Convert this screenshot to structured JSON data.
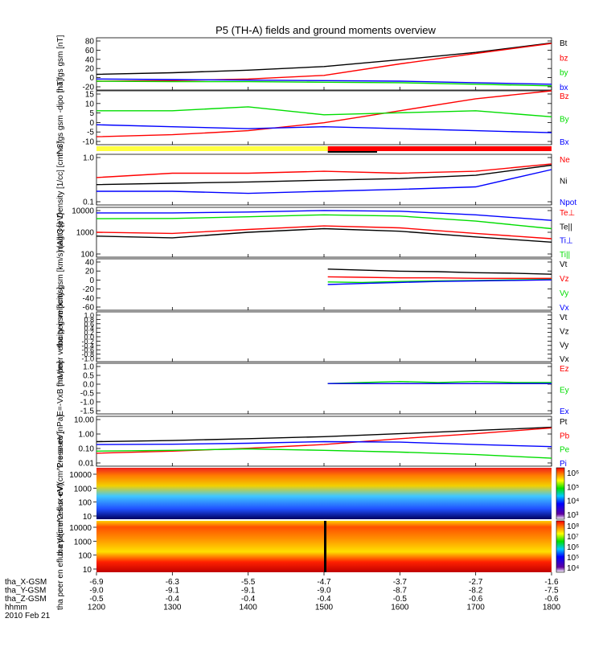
{
  "title": "P5 (TH-A) fields and ground moments overview",
  "date_label": "2010 Feb 21",
  "x_axis": {
    "ticks": [
      "1200",
      "1300",
      "1400",
      "1500",
      "1600",
      "1700",
      "1800"
    ],
    "rows": [
      {
        "label": "tha_X-GSM",
        "values": [
          "-6.9",
          "-6.3",
          "-5.5",
          "-4.7",
          "-3.7",
          "-2.7",
          "-1.6"
        ]
      },
      {
        "label": "tha_Y-GSM",
        "values": [
          "-9.0",
          "-9.1",
          "-9.1",
          "-9.0",
          "-8.7",
          "-8.2",
          "-7.5"
        ]
      },
      {
        "label": "tha_Z-GSM",
        "values": [
          "-0.5",
          "-0.4",
          "-0.4",
          "-0.4",
          "-0.5",
          "-0.6",
          "-0.6"
        ]
      },
      {
        "label": "hhmm",
        "values": [
          "1200",
          "1300",
          "1400",
          "1500",
          "1600",
          "1700",
          "1800"
        ]
      }
    ]
  },
  "colors": {
    "black": "#000000",
    "red": "#ff0000",
    "green": "#00dd00",
    "blue": "#0000ff",
    "yellow": "#ffff40"
  },
  "chart_data": [
    {
      "type": "line",
      "ylabel": "tha fgs gsm [nT]",
      "ylim": [
        -20,
        80
      ],
      "yticks": [
        "80",
        "60",
        "40",
        "20",
        "0",
        "-20"
      ],
      "x": [
        1200,
        1300,
        1400,
        1500,
        1600,
        1700,
        1800
      ],
      "series": [
        {
          "name": "Bt",
          "color": "#000000",
          "values": [
            10,
            13,
            18,
            25,
            38,
            52,
            70
          ]
        },
        {
          "name": "bz",
          "color": "#ff0000",
          "values": [
            -3,
            -2,
            1,
            8,
            30,
            50,
            69
          ]
        },
        {
          "name": "by",
          "color": "#00dd00",
          "values": [
            -3,
            -4,
            -4,
            -5,
            -6,
            -9,
            -12
          ]
        },
        {
          "name": "bx",
          "color": "#0000ff",
          "values": [
            1,
            0,
            -1,
            -2,
            -3,
            -6,
            -9
          ]
        }
      ]
    },
    {
      "type": "line",
      "ylabel": "tha fgs gsm -dipo [nT]",
      "ylim": [
        -12,
        15
      ],
      "yticks": [
        "15",
        "10",
        "5",
        "0",
        "-5",
        "-10"
      ],
      "x": [
        1200,
        1300,
        1400,
        1500,
        1600,
        1700,
        1800
      ],
      "series": [
        {
          "name": "Bz",
          "color": "#ff0000",
          "values": [
            -8,
            -7,
            -5,
            -1,
            5,
            11,
            15
          ]
        },
        {
          "name": "By",
          "color": "#00dd00",
          "values": [
            5,
            5,
            7,
            3,
            4,
            5,
            2
          ]
        },
        {
          "name": "Bx",
          "color": "#0000ff",
          "values": [
            -2,
            -3,
            -4,
            -3,
            -4,
            -5,
            -6
          ]
        }
      ]
    },
    {
      "type": "line",
      "ylabel": "Density [1/cc] [cm^-3]",
      "scale": "log",
      "ylim": [
        0.1,
        1.3
      ],
      "yticks": [
        "1.0",
        "0.1"
      ],
      "x": [
        1200,
        1300,
        1400,
        1500,
        1600,
        1700,
        1800
      ],
      "series": [
        {
          "name": "Ne",
          "color": "#ff0000",
          "values": [
            0.4,
            0.5,
            0.5,
            0.55,
            0.5,
            0.55,
            0.8
          ]
        },
        {
          "name": "Ni",
          "color": "#000000",
          "values": [
            0.28,
            0.3,
            0.32,
            0.35,
            0.38,
            0.45,
            0.75
          ]
        },
        {
          "name": "Npot",
          "color": "#0000ff",
          "values": [
            0.2,
            0.2,
            0.18,
            0.2,
            0.22,
            0.25,
            0.6
          ]
        }
      ]
    },
    {
      "type": "line",
      "ylabel": "magt3 [eV]",
      "scale": "log",
      "ylim": [
        100,
        10000
      ],
      "yticks": [
        "10000",
        "1000",
        "100"
      ],
      "x": [
        1200,
        1300,
        1400,
        1500,
        1600,
        1700,
        1800
      ],
      "series": [
        {
          "name": "Te⊥",
          "color": "#ff0000",
          "values": [
            1000,
            900,
            1300,
            1800,
            1500,
            900,
            550
          ]
        },
        {
          "name": "Te||",
          "color": "#000000",
          "values": [
            700,
            600,
            1000,
            1400,
            1100,
            650,
            400
          ]
        },
        {
          "name": "Ti⊥",
          "color": "#0000ff",
          "values": [
            6000,
            6000,
            6500,
            7500,
            7000,
            5000,
            3000
          ]
        },
        {
          "name": "Ti||",
          "color": "#00dd00",
          "values": [
            3500,
            3600,
            4200,
            5000,
            4500,
            2800,
            1400
          ]
        }
      ]
    },
    {
      "type": "line",
      "ylabel": "tha peir velocity gsm [km/s] (All Qs)",
      "ylim": [
        -60,
        40
      ],
      "yticks": [
        "40",
        "20",
        "0",
        "-20",
        "-40",
        "-60"
      ],
      "x": [
        1505,
        1550,
        1600,
        1650,
        1700,
        1750,
        1800
      ],
      "series": [
        {
          "name": "Vt",
          "color": "#000000",
          "values": [
            20,
            18,
            16,
            15,
            13,
            12,
            10
          ]
        },
        {
          "name": "Vz",
          "color": "#ff0000",
          "values": [
            5,
            4,
            3,
            3,
            2,
            2,
            2
          ]
        },
        {
          "name": "Vy",
          "color": "#00dd00",
          "values": [
            -5,
            -6,
            -4,
            -3,
            -2,
            -1,
            0
          ]
        },
        {
          "name": "Vx",
          "color": "#0000ff",
          "values": [
            -10,
            -8,
            -6,
            -4,
            -3,
            -2,
            -1
          ]
        }
      ]
    },
    {
      "type": "line",
      "ylabel": "tha peer velocity gsm [km/s]",
      "ylim": [
        -1,
        1
      ],
      "yticks": [
        "1.0",
        "0.8",
        "0.6",
        "0.4",
        "0.2",
        "0.0",
        "-0.2",
        "-0.4",
        "-0.6",
        "-0.8",
        "-1.0"
      ],
      "legend": [
        "Vt",
        "Vz",
        "Vy",
        "Vx"
      ],
      "series": []
    },
    {
      "type": "line",
      "ylabel": "E=-VxB [mV/m]",
      "ylim": [
        -1.5,
        1
      ],
      "yticks": [
        "1.0",
        "0.5",
        "0.0",
        "-0.5",
        "-1.0",
        "-1.5"
      ],
      "x": [
        1505,
        1550,
        1600,
        1650,
        1700,
        1750,
        1800
      ],
      "series": [
        {
          "name": "Ez",
          "color": "#ff0000",
          "values": [
            0,
            0,
            0,
            0,
            0,
            0,
            0
          ]
        },
        {
          "name": "Ey",
          "color": "#00dd00",
          "values": [
            0,
            0.05,
            0.1,
            0.05,
            0.1,
            0.05,
            0.05
          ]
        },
        {
          "name": "Ex",
          "color": "#0000ff",
          "values": [
            0,
            0,
            0,
            0,
            0,
            0,
            0
          ]
        }
      ]
    },
    {
      "type": "line",
      "ylabel": "Pressure [nPa]",
      "scale": "log",
      "ylim": [
        0.01,
        10
      ],
      "yticks": [
        "10.00",
        "1.00",
        "0.10",
        "0.01"
      ],
      "x": [
        1200,
        1300,
        1400,
        1500,
        1600,
        1700,
        1800
      ],
      "series": [
        {
          "name": "Pt",
          "color": "#000000",
          "values": [
            0.3,
            0.35,
            0.45,
            0.6,
            0.9,
            1.4,
            2.2
          ]
        },
        {
          "name": "Pb",
          "color": "#ff0000",
          "values": [
            0.06,
            0.08,
            0.12,
            0.2,
            0.45,
            0.9,
            2.0
          ]
        },
        {
          "name": "Pe",
          "color": "#00dd00",
          "values": [
            0.08,
            0.09,
            0.11,
            0.09,
            0.07,
            0.05,
            0.03
          ]
        },
        {
          "name": "Pi",
          "color": "#0000ff",
          "values": [
            0.2,
            0.21,
            0.24,
            0.3,
            0.28,
            0.2,
            0.15
          ]
        }
      ]
    },
    {
      "type": "heatmap",
      "ylabel": "tha peir en eflux eV/(cm^2-s-sr-eV)",
      "yticks": [
        "10000",
        "1000",
        "100",
        "10"
      ],
      "colorbar_ticks": [
        "10⁶",
        "10⁵",
        "10⁴",
        "10³"
      ]
    },
    {
      "type": "heatmap",
      "ylabel": "tha peer en eflux eV/(cm^2-s-sr-eV)",
      "yticks": [
        "10000",
        "1000",
        "100",
        "10"
      ],
      "colorbar_ticks": [
        "10⁸",
        "10⁷",
        "10⁶",
        "10⁵",
        "10⁴"
      ]
    }
  ]
}
